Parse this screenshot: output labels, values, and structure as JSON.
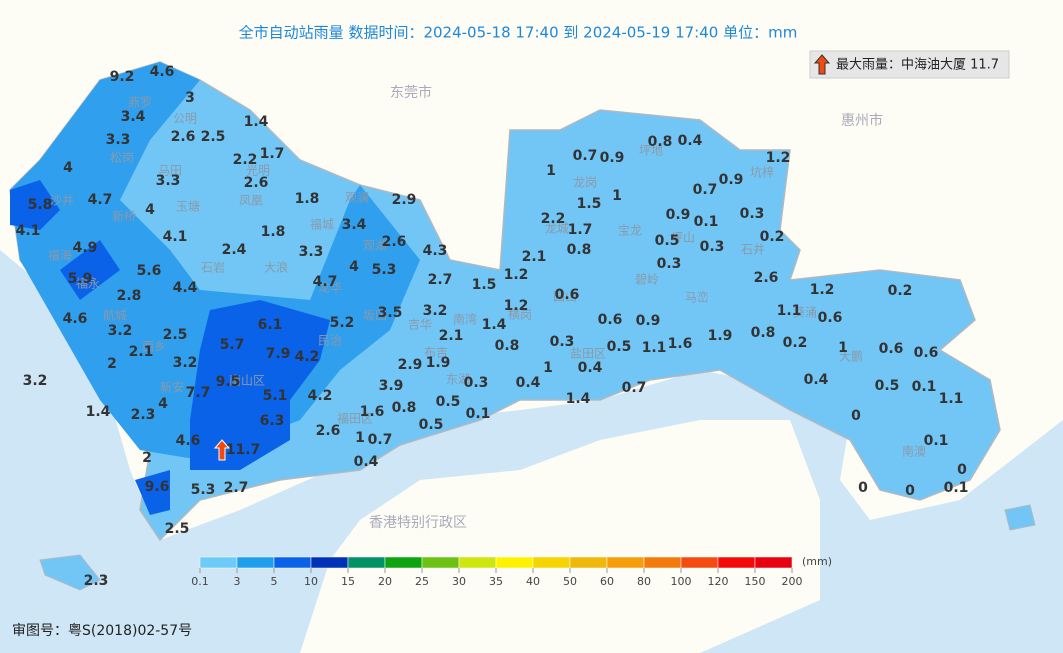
{
  "header": {
    "title": "全市自动站雨量  数据时间：2024-05-18 17:40 到 2024-05-19 17:40  单位：mm"
  },
  "max_rain": {
    "label": "最大雨量：中海油大厦 11.7"
  },
  "places": [
    "东莞市",
    "惠州市",
    "香港特别行政区"
  ],
  "districts": [
    "燕罗",
    "公明",
    "松岗",
    "马田",
    "光明",
    "玉塘",
    "凤凰",
    "沙井",
    "新桥",
    "福海",
    "福永",
    "石岩",
    "大浪",
    "观澜",
    "福城",
    "观湖",
    "龙华",
    "坂田",
    "航城",
    "民治",
    "吉华",
    "南湾",
    "西乡",
    "布吉",
    "东湖",
    "新安",
    "南山区",
    "福田区",
    "龙岗",
    "坪地",
    "坑梓",
    "龙城",
    "宝龙",
    "坪山",
    "石井",
    "碧岭",
    "横岗",
    "园山",
    "马峦",
    "盐田区",
    "葵涌",
    "大鹏",
    "南澳"
  ],
  "stations": [
    9.2,
    4.6,
    3,
    3.4,
    3.3,
    2.6,
    2.5,
    1.4,
    2.2,
    1.7,
    4,
    3.3,
    2.6,
    5.8,
    4.7,
    4,
    1.8,
    2.9,
    4.1,
    4.9,
    4.1,
    2.4,
    1.8,
    3.3,
    3.4,
    2.6,
    4.3,
    5.9,
    5.6,
    4.4,
    2.8,
    4.7,
    4,
    5.3,
    2.7,
    1.5,
    4.6,
    3.2,
    2.5,
    6.1,
    5.2,
    3.5,
    3.2,
    2.1,
    5.7,
    7.9,
    4.2,
    2.1,
    2,
    3.2,
    1.9,
    2.9,
    3.2,
    9.5,
    7.7,
    5.1,
    4.2,
    3.9,
    1.4,
    2.3,
    4,
    6.3,
    1.6,
    0.8,
    0.5,
    0.3,
    0.1,
    0.5,
    4.6,
    11.7,
    2.6,
    1,
    0.7,
    2,
    0.4,
    9.6,
    5.3,
    2.7,
    2.5,
    2.3,
    0.7,
    0.9,
    0.8,
    0.4,
    1.2,
    1,
    1,
    1.5,
    0.7,
    0.9,
    2.2,
    1.7,
    0.9,
    0.1,
    0.3,
    2.1,
    0.8,
    0.5,
    0.3,
    0.2,
    0.3,
    1.2,
    2.6,
    0.6,
    1.2,
    1.2,
    0.2,
    1.4,
    0.6,
    0.9,
    1.1,
    0.6,
    0.8,
    0.3,
    0.5,
    1.1,
    1.6,
    1.9,
    0.8,
    0.2,
    1,
    0.6,
    0.6,
    1,
    0.4,
    0.4,
    0.7,
    0.4,
    0.5,
    0.1,
    1.4,
    1.1,
    0,
    0.1,
    0,
    0,
    0,
    0.1
  ],
  "legend": {
    "unit": "(mm)",
    "ticks": [
      0.1,
      3,
      5,
      10,
      15,
      20,
      25,
      30,
      35,
      40,
      50,
      60,
      80,
      100,
      120,
      150,
      200
    ],
    "colors": [
      "#6ecbf7",
      "#1e9eeb",
      "#0a62e8",
      "#0032b8",
      "#039267",
      "#0ea311",
      "#6cc214",
      "#cde60d",
      "#fff200",
      "#f5d400",
      "#efb80a",
      "#f59d0a",
      "#f47a0c",
      "#f54a10",
      "#f50a0a",
      "#e80012"
    ]
  },
  "footer": {
    "approval": "审图号：粤S(2018)02-57号"
  }
}
